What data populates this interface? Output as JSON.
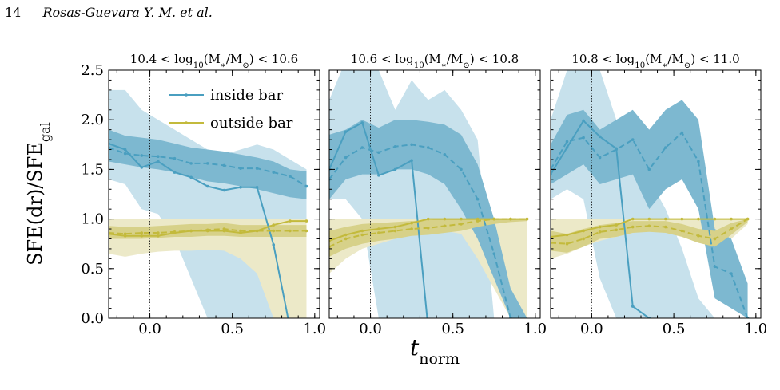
{
  "header": {
    "page_number": "14",
    "authors": "Rosas-Guevara Y. M. et al."
  },
  "colors": {
    "inside": "#4a9fc0",
    "inside_band_dark": "#7db8d0",
    "inside_band_light": "#c7e1ec",
    "outside": "#c3ba3c",
    "outside_band_dark": "#d7d189",
    "outside_band_light": "#ece9c8"
  },
  "chart_data": {
    "type": "line",
    "ylabel": "SFE(dr)/SFE_gal",
    "xlabel": "t_norm",
    "xlim": [
      -0.25,
      1.03
    ],
    "ylim": [
      0.0,
      2.5
    ],
    "x_ticks": [
      "0.0",
      "0.5",
      "1.0"
    ],
    "y_ticks": [
      "0.0",
      "0.5",
      "1.0",
      "1.5",
      "2.0",
      "2.5"
    ],
    "reference_lines": {
      "x": 0.0,
      "y": 1.0
    },
    "legend": {
      "placement": "top-center",
      "entries": [
        "inside bar",
        "outside bar"
      ]
    },
    "panels": [
      {
        "title": "10.4 < log10(M*/M⊙) < 10.6",
        "x": [
          -0.25,
          -0.15,
          -0.05,
          0.05,
          0.15,
          0.25,
          0.35,
          0.45,
          0.55,
          0.65,
          0.75,
          0.85,
          0.95
        ],
        "series": [
          {
            "name": "inside bar",
            "style": "solid",
            "values": [
              1.76,
              1.7,
              1.52,
              1.58,
              1.47,
              1.42,
              1.33,
              1.29,
              1.32,
              1.32,
              0.74,
              -0.1,
              null
            ],
            "band_light": {
              "low": [
                1.4,
                1.35,
                1.1,
                1.05,
                0.8,
                0.4,
                0.0,
                0.0,
                0.0,
                0.0,
                0.0,
                0.0,
                0.0
              ],
              "high": [
                2.3,
                2.3,
                2.1,
                2.0,
                1.9,
                1.8,
                1.7,
                1.65,
                1.7,
                1.75,
                1.7,
                1.6,
                1.5
              ]
            }
          },
          {
            "name": "inside bar",
            "style": "dashed",
            "values": [
              1.72,
              1.66,
              1.64,
              1.63,
              1.61,
              1.56,
              1.56,
              1.54,
              1.51,
              1.51,
              1.47,
              1.43,
              1.33
            ],
            "band_dark": {
              "low": [
                1.58,
                1.55,
                1.52,
                1.5,
                1.47,
                1.42,
                1.38,
                1.36,
                1.33,
                1.3,
                1.26,
                1.22,
                1.2
              ],
              "high": [
                1.9,
                1.84,
                1.82,
                1.8,
                1.76,
                1.72,
                1.7,
                1.68,
                1.65,
                1.62,
                1.58,
                1.5,
                1.48
              ]
            }
          },
          {
            "name": "outside bar",
            "style": "solid",
            "values": [
              0.85,
              0.83,
              0.83,
              0.83,
              0.86,
              0.88,
              0.88,
              0.88,
              0.86,
              0.88,
              0.94,
              0.98,
              0.98
            ],
            "band_light": {
              "low": [
                0.65,
                0.62,
                0.65,
                0.67,
                0.68,
                0.68,
                0.69,
                0.68,
                0.6,
                0.45,
                0.0,
                0.0,
                0.0
              ],
              "high": [
                1.0,
                1.0,
                1.0,
                1.0,
                1.0,
                1.0,
                1.0,
                1.0,
                1.0,
                1.0,
                1.0,
                1.0,
                1.0
              ]
            }
          },
          {
            "name": "outside bar",
            "style": "dashed",
            "values": [
              0.86,
              0.85,
              0.86,
              0.86,
              0.87,
              0.88,
              0.89,
              0.9,
              0.88,
              0.88,
              0.88,
              0.88,
              0.88
            ],
            "band_dark": {
              "low": [
                0.8,
                0.8,
                0.8,
                0.81,
                0.82,
                0.82,
                0.83,
                0.83,
                0.82,
                0.82,
                0.82,
                0.82,
                0.82
              ],
              "high": [
                0.93,
                0.92,
                0.92,
                0.93,
                0.94,
                0.95,
                0.95,
                0.96,
                0.94,
                0.94,
                0.94,
                0.94,
                0.94
              ]
            }
          }
        ]
      },
      {
        "title": "10.6 < log10(M*/M⊙) < 10.8",
        "x": [
          -0.25,
          -0.15,
          -0.05,
          0.05,
          0.15,
          0.25,
          0.35,
          0.45,
          0.55,
          0.65,
          0.75,
          0.85,
          0.95
        ],
        "series": [
          {
            "name": "inside bar",
            "style": "solid",
            "values": [
              1.5,
              1.88,
              1.97,
              1.44,
              1.5,
              1.59,
              -0.1,
              null,
              null,
              null,
              null,
              null,
              null
            ],
            "band_light": {
              "low": [
                1.2,
                1.2,
                1.0,
                0.0,
                0.0,
                0.0,
                0.0,
                0.0,
                0.0,
                0.0,
                0.0,
                0.0,
                0.0
              ],
              "high": [
                2.2,
                2.6,
                2.7,
                2.5,
                2.1,
                2.4,
                2.2,
                2.3,
                2.1,
                1.8,
                0.0,
                0.0,
                0.0
              ]
            }
          },
          {
            "name": "inside bar",
            "style": "dashed",
            "values": [
              1.4,
              1.62,
              1.72,
              1.67,
              1.73,
              1.75,
              1.72,
              1.65,
              1.5,
              1.2,
              0.65,
              0.0,
              null
            ],
            "band_dark": {
              "low": [
                1.2,
                1.4,
                1.45,
                1.45,
                1.5,
                1.5,
                1.45,
                1.35,
                1.1,
                0.8,
                0.4,
                0.0,
                0.0
              ],
              "high": [
                1.85,
                1.9,
                2.0,
                1.92,
                2.0,
                2.0,
                1.98,
                1.95,
                1.85,
                1.55,
                1.0,
                0.3,
                0.0
              ]
            }
          },
          {
            "name": "outside bar",
            "style": "solid",
            "values": [
              0.78,
              0.84,
              0.88,
              0.9,
              0.92,
              0.96,
              1.0,
              1.0,
              1.0,
              1.0,
              1.0,
              1.0,
              1.0
            ],
            "band_light": {
              "low": [
                0.45,
                0.6,
                0.7,
                0.75,
                0.8,
                0.85,
                0.88,
                0.88,
                0.85,
                0.6,
                0.3,
                0.0,
                0.0
              ],
              "high": [
                1.0,
                1.0,
                1.0,
                1.0,
                1.0,
                1.0,
                1.0,
                1.0,
                1.0,
                1.0,
                1.0,
                1.0,
                1.0
              ]
            }
          },
          {
            "name": "outside bar",
            "style": "dashed",
            "values": [
              0.72,
              0.8,
              0.84,
              0.86,
              0.88,
              0.9,
              0.91,
              0.93,
              0.95,
              0.98,
              1.0,
              1.0,
              1.0
            ],
            "band_dark": {
              "low": [
                0.62,
                0.7,
                0.75,
                0.78,
                0.8,
                0.83,
                0.84,
                0.86,
                0.88,
                0.92,
                0.95,
                0.97,
                0.98
              ],
              "high": [
                0.88,
                0.92,
                0.95,
                0.96,
                0.97,
                0.98,
                0.99,
                1.0,
                1.0,
                1.0,
                1.0,
                1.0,
                1.0
              ]
            }
          }
        ]
      },
      {
        "title": "10.8 < log10(M*/M⊙) < 11.0",
        "x": [
          -0.25,
          -0.15,
          -0.05,
          0.05,
          0.15,
          0.25,
          0.35,
          0.45,
          0.55,
          0.65,
          0.75,
          0.85,
          0.95
        ],
        "series": [
          {
            "name": "inside bar",
            "style": "solid",
            "values": [
              1.45,
              1.72,
              1.99,
              1.83,
              1.71,
              0.12,
              0.0,
              -0.05,
              null,
              null,
              null,
              null,
              null
            ],
            "band_light": {
              "low": [
                1.2,
                1.3,
                1.2,
                0.4,
                0.0,
                0.0,
                0.0,
                0.0,
                0.0,
                0.0,
                0.0,
                0.0,
                0.0
              ],
              "high": [
                2.0,
                2.5,
                2.7,
                2.5,
                2.0,
                1.7,
                1.4,
                1.1,
                0.7,
                0.2,
                0.0,
                0.0,
                0.0
              ]
            }
          },
          {
            "name": "inside bar",
            "style": "dashed",
            "values": [
              1.5,
              1.78,
              1.82,
              1.62,
              1.7,
              1.8,
              1.5,
              1.72,
              1.87,
              1.58,
              0.52,
              0.45,
              0.0
            ],
            "band_dark": {
              "low": [
                1.35,
                1.45,
                1.55,
                1.35,
                1.4,
                1.45,
                1.1,
                1.3,
                1.4,
                1.1,
                0.2,
                0.1,
                0.0
              ],
              "high": [
                1.75,
                2.05,
                2.1,
                1.9,
                2.0,
                2.1,
                1.9,
                2.1,
                2.2,
                2.0,
                0.9,
                0.8,
                0.35
              ]
            }
          },
          {
            "name": "outside bar",
            "style": "solid",
            "values": [
              0.82,
              0.84,
              0.88,
              0.92,
              0.94,
              1.0,
              1.0,
              1.0,
              1.0,
              1.0,
              1.0,
              1.0,
              1.0
            ],
            "band_light": {
              "low": [
                0.6,
                0.65,
                0.72,
                0.78,
                0.82,
                0.86,
                0.88,
                0.88,
                0.86,
                0.8,
                0.7,
                0.8,
                0.95
              ],
              "high": [
                1.0,
                1.0,
                1.0,
                1.0,
                1.0,
                1.0,
                1.0,
                1.0,
                1.0,
                1.0,
                1.0,
                1.0,
                1.0
              ]
            }
          },
          {
            "name": "outside bar",
            "style": "dashed",
            "values": [
              0.76,
              0.75,
              0.8,
              0.87,
              0.89,
              0.92,
              0.93,
              0.92,
              0.88,
              0.83,
              0.8,
              0.9,
              1.0
            ],
            "band_dark": {
              "low": [
                0.68,
                0.66,
                0.72,
                0.8,
                0.82,
                0.86,
                0.87,
                0.86,
                0.82,
                0.76,
                0.72,
                0.84,
                0.97
              ],
              "high": [
                0.88,
                0.85,
                0.9,
                0.94,
                0.96,
                0.98,
                0.98,
                0.98,
                0.95,
                0.9,
                0.88,
                0.96,
                1.0
              ]
            }
          }
        ]
      }
    ]
  }
}
